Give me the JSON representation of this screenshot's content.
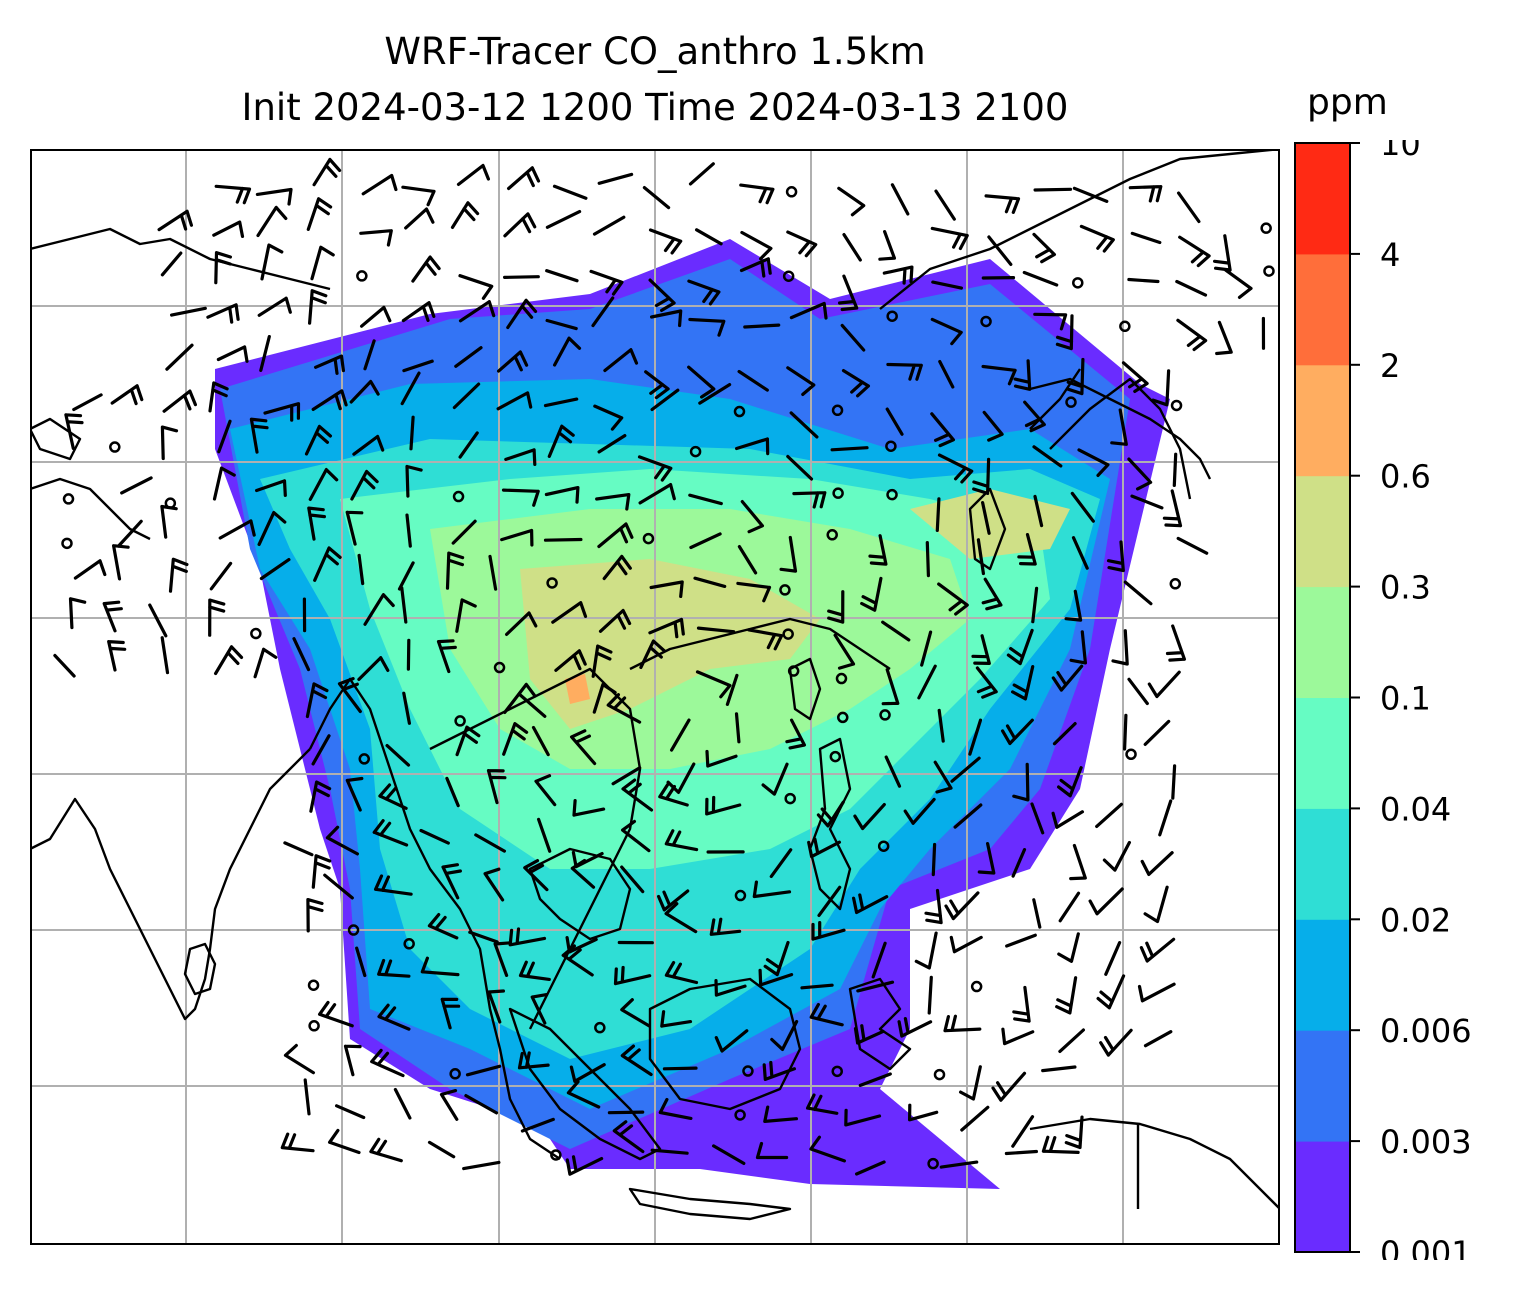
{
  "title": {
    "line1": "WRF-Tracer CO_anthro 1.5km",
    "line2": "Init 2024-03-12 1200 Time 2024-03-13 2100"
  },
  "colorbar": {
    "units": "ppm",
    "tick_labels": [
      "0.001",
      "0.003",
      "0.006",
      "0.02",
      "0.04",
      "0.1",
      "0.3",
      "0.6",
      "2",
      "4",
      "10"
    ],
    "colors": [
      "#6a2cff",
      "#3374f5",
      "#06aeea",
      "#2fded5",
      "#66fcc3",
      "#9cf99a",
      "#cfe087",
      "#ffad60",
      "#ff6e3a",
      "#ff2a14"
    ]
  },
  "map": {
    "field": "CO_anthro",
    "gridlines": true,
    "overlay": "wind-barbs",
    "coastline_color": "#000000",
    "gridline_color": "#b0b0b0"
  }
}
